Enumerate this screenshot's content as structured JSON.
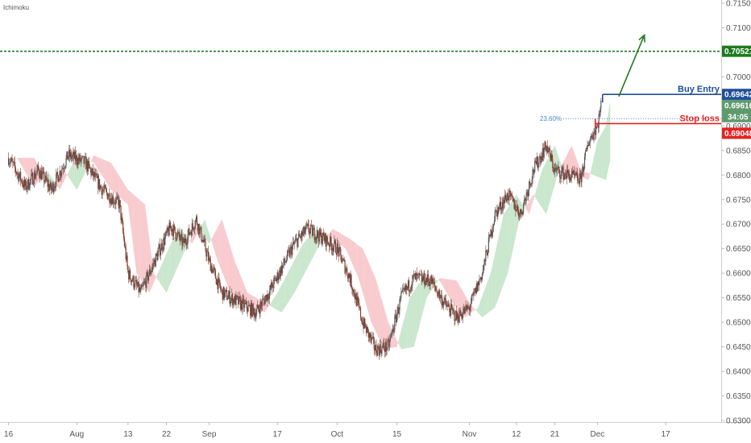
{
  "indicator_label": "Ichimoku",
  "chart_data": {
    "type": "candlestick",
    "ylim": [
      0.63,
      0.715
    ],
    "y_ticks": [
      "0.71500",
      "0.71000",
      "0.70500",
      "0.70000",
      "0.69500",
      "0.69000",
      "0.68500",
      "0.68000",
      "0.67500",
      "0.67000",
      "0.66500",
      "0.66000",
      "0.65500",
      "0.65000",
      "0.64500",
      "0.64000",
      "0.63500",
      "0.63000"
    ],
    "x_ticks": [
      {
        "label": "16",
        "day": 0
      },
      {
        "label": "Aug",
        "day": 16
      },
      {
        "label": "13",
        "day": 28
      },
      {
        "label": "22",
        "day": 37
      },
      {
        "label": "Sep",
        "day": 47
      },
      {
        "label": "17",
        "day": 63
      },
      {
        "label": "Oct",
        "day": 77
      },
      {
        "label": "15",
        "day": 91
      },
      {
        "label": "Nov",
        "day": 108
      },
      {
        "label": "12",
        "day": 119
      },
      {
        "label": "21",
        "day": 128
      },
      {
        "label": "Dec",
        "day": 138
      },
      {
        "label": "17",
        "day": 154
      }
    ],
    "day_range": [
      -2,
      167
    ],
    "price_path": [
      [
        0,
        0.6835
      ],
      [
        4,
        0.6775
      ],
      [
        7,
        0.681
      ],
      [
        10,
        0.677
      ],
      [
        14,
        0.684
      ],
      [
        18,
        0.6825
      ],
      [
        22,
        0.677
      ],
      [
        26,
        0.674
      ],
      [
        28,
        0.66
      ],
      [
        31,
        0.656
      ],
      [
        35,
        0.664
      ],
      [
        38,
        0.6695
      ],
      [
        41,
        0.666
      ],
      [
        44,
        0.671
      ],
      [
        47,
        0.6625
      ],
      [
        50,
        0.656
      ],
      [
        54,
        0.654
      ],
      [
        58,
        0.652
      ],
      [
        61,
        0.656
      ],
      [
        64,
        0.661
      ],
      [
        67,
        0.666
      ],
      [
        70,
        0.669
      ],
      [
        74,
        0.667
      ],
      [
        77,
        0.665
      ],
      [
        80,
        0.659
      ],
      [
        83,
        0.65
      ],
      [
        86,
        0.6445
      ],
      [
        89,
        0.645
      ],
      [
        92,
        0.655
      ],
      [
        95,
        0.659
      ],
      [
        99,
        0.6585
      ],
      [
        102,
        0.654
      ],
      [
        105,
        0.651
      ],
      [
        108,
        0.653
      ],
      [
        111,
        0.66
      ],
      [
        114,
        0.672
      ],
      [
        117,
        0.676
      ],
      [
        120,
        0.672
      ],
      [
        123,
        0.681
      ],
      [
        126,
        0.686
      ],
      [
        128,
        0.681
      ],
      [
        131,
        0.68
      ],
      [
        134,
        0.679
      ],
      [
        136,
        0.687
      ],
      [
        138,
        0.69
      ],
      [
        139,
        0.695
      ]
    ],
    "price_levels": [
      {
        "name": "target",
        "value": 0.70521,
        "label": "0.70521",
        "color": "#1e7b1e",
        "style": "dashed"
      },
      {
        "name": "buy-entry",
        "value": 0.69642,
        "label": "0.69642",
        "color": "#1f4e99",
        "style": "solid",
        "annotation": "Buy Entry"
      },
      {
        "name": "current-price",
        "value": 0.69616,
        "label": "0.69616",
        "color": "#5f9a6e",
        "countdown": "34:05"
      },
      {
        "name": "stop-loss",
        "value": 0.69048,
        "label": "0.69048",
        "color": "#e02424",
        "style": "solid",
        "annotation": "Stop loss"
      }
    ],
    "fib": {
      "label": "23.60%",
      "value": 0.6915
    },
    "colors": {
      "up": "#5a5a5a",
      "down": "#8a3a2a",
      "cloud_bull": "#bfe3c4",
      "cloud_bear": "#f7c1c6",
      "target_arrow": "#1e7b1e"
    }
  }
}
